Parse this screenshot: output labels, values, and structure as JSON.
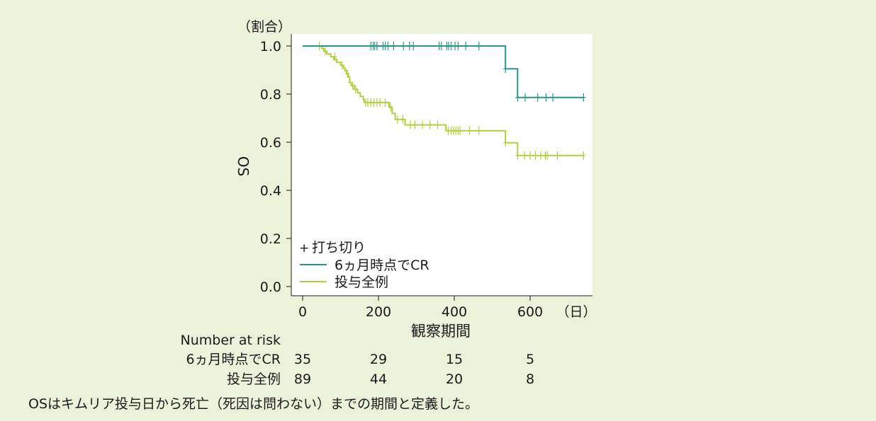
{
  "chart_data": {
    "type": "line",
    "subtype": "kaplan-meier step",
    "y_unit_label": "（割合）",
    "ylabel": "OS",
    "xlabel": "観察期間",
    "x_unit_label": "（日）",
    "xlim": [
      0,
      740
    ],
    "ylim": [
      0,
      1.0
    ],
    "xticks": [
      0,
      200,
      400,
      600
    ],
    "yticks": [
      "0.0",
      "0.2",
      "0.4",
      "0.6",
      "0.8",
      "1.0"
    ],
    "grid": false,
    "legend_position": "bottom-left",
    "censor_label": "打ち切り",
    "censor_symbol": "+",
    "series": [
      {
        "name": "6ヵ月時点でCR",
        "color": "#27968a",
        "steps": [
          [
            0,
            1.0
          ],
          [
            535,
            1.0
          ],
          [
            535,
            0.905
          ],
          [
            567,
            0.905
          ],
          [
            567,
            0.786
          ],
          [
            741,
            0.786
          ]
        ],
        "censored": [
          [
            180,
            1.0
          ],
          [
            186,
            1.0
          ],
          [
            190,
            1.0
          ],
          [
            196,
            1.0
          ],
          [
            212,
            1.0
          ],
          [
            218,
            1.0
          ],
          [
            225,
            1.0
          ],
          [
            240,
            1.0
          ],
          [
            266,
            1.0
          ],
          [
            282,
            1.0
          ],
          [
            292,
            1.0
          ],
          [
            360,
            1.0
          ],
          [
            366,
            1.0
          ],
          [
            380,
            1.0
          ],
          [
            385,
            1.0
          ],
          [
            392,
            1.0
          ],
          [
            402,
            1.0
          ],
          [
            410,
            1.0
          ],
          [
            430,
            1.0
          ],
          [
            465,
            1.0
          ],
          [
            535,
            0.905
          ],
          [
            567,
            0.786
          ],
          [
            587,
            0.786
          ],
          [
            620,
            0.786
          ],
          [
            642,
            0.786
          ],
          [
            660,
            0.786
          ],
          [
            741,
            0.786
          ]
        ]
      },
      {
        "name": "投与全例",
        "color": "#b5cc3c",
        "steps": [
          [
            0,
            1.0
          ],
          [
            50,
            1.0
          ],
          [
            50,
            0.99
          ],
          [
            56,
            0.99
          ],
          [
            56,
            0.978
          ],
          [
            64,
            0.978
          ],
          [
            64,
            0.967
          ],
          [
            74,
            0.967
          ],
          [
            74,
            0.955
          ],
          [
            82,
            0.955
          ],
          [
            82,
            0.944
          ],
          [
            90,
            0.944
          ],
          [
            90,
            0.932
          ],
          [
            100,
            0.932
          ],
          [
            100,
            0.92
          ],
          [
            108,
            0.92
          ],
          [
            108,
            0.908
          ],
          [
            112,
            0.908
          ],
          [
            112,
            0.897
          ],
          [
            116,
            0.897
          ],
          [
            116,
            0.885
          ],
          [
            120,
            0.885
          ],
          [
            120,
            0.872
          ],
          [
            124,
            0.872
          ],
          [
            124,
            0.848
          ],
          [
            128,
            0.848
          ],
          [
            128,
            0.835
          ],
          [
            136,
            0.835
          ],
          [
            136,
            0.82
          ],
          [
            145,
            0.82
          ],
          [
            145,
            0.805
          ],
          [
            152,
            0.805
          ],
          [
            152,
            0.79
          ],
          [
            160,
            0.79
          ],
          [
            160,
            0.777
          ],
          [
            162,
            0.777
          ],
          [
            162,
            0.765
          ],
          [
            228,
            0.765
          ],
          [
            228,
            0.746
          ],
          [
            236,
            0.746
          ],
          [
            236,
            0.72
          ],
          [
            244,
            0.72
          ],
          [
            244,
            0.695
          ],
          [
            270,
            0.695
          ],
          [
            270,
            0.672
          ],
          [
            378,
            0.672
          ],
          [
            378,
            0.648
          ],
          [
            535,
            0.648
          ],
          [
            535,
            0.598
          ],
          [
            567,
            0.598
          ],
          [
            567,
            0.545
          ],
          [
            741,
            0.545
          ]
        ],
        "censored": [
          [
            44,
            1.0
          ],
          [
            60,
            0.978
          ],
          [
            85,
            0.955
          ],
          [
            104,
            0.92
          ],
          [
            118,
            0.885
          ],
          [
            132,
            0.835
          ],
          [
            140,
            0.82
          ],
          [
            166,
            0.765
          ],
          [
            172,
            0.765
          ],
          [
            180,
            0.765
          ],
          [
            188,
            0.765
          ],
          [
            196,
            0.765
          ],
          [
            204,
            0.765
          ],
          [
            218,
            0.765
          ],
          [
            232,
            0.746
          ],
          [
            250,
            0.695
          ],
          [
            264,
            0.695
          ],
          [
            284,
            0.672
          ],
          [
            296,
            0.672
          ],
          [
            316,
            0.672
          ],
          [
            336,
            0.672
          ],
          [
            356,
            0.672
          ],
          [
            384,
            0.648
          ],
          [
            392,
            0.648
          ],
          [
            398,
            0.648
          ],
          [
            404,
            0.648
          ],
          [
            410,
            0.648
          ],
          [
            415,
            0.648
          ],
          [
            440,
            0.648
          ],
          [
            465,
            0.648
          ],
          [
            535,
            0.598
          ],
          [
            567,
            0.545
          ],
          [
            585,
            0.545
          ],
          [
            600,
            0.545
          ],
          [
            614,
            0.545
          ],
          [
            628,
            0.545
          ],
          [
            640,
            0.545
          ],
          [
            645,
            0.545
          ],
          [
            672,
            0.545
          ],
          [
            741,
            0.545
          ]
        ]
      }
    ],
    "risk_table": {
      "header": "Number at risk",
      "times": [
        0,
        200,
        400,
        600
      ],
      "rows": [
        {
          "label": "6ヵ月時点でCR",
          "counts": [
            "35",
            "29",
            "15",
            "5"
          ]
        },
        {
          "label": "投与全例",
          "counts": [
            "89",
            "44",
            "20",
            "8"
          ]
        }
      ]
    }
  },
  "footnote": "OSはキムリア投与日から死亡（死因は問わない）までの期間と定義した。"
}
